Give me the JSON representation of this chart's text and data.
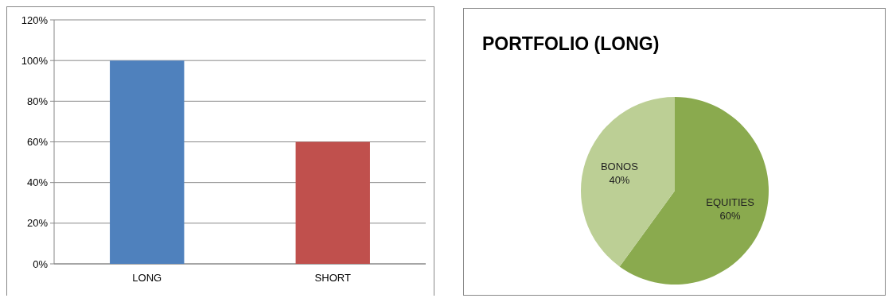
{
  "chart_data": [
    {
      "type": "bar",
      "categories": [
        "LONG",
        "SHORT"
      ],
      "colors": [
        "#4f81bd",
        "#c0504d"
      ],
      "values": [
        100,
        60
      ],
      "ylim": [
        0,
        120
      ],
      "yticks": [
        {
          "value": 0,
          "label": "0%"
        },
        {
          "value": 20,
          "label": "20%"
        },
        {
          "value": 40,
          "label": "40%"
        },
        {
          "value": 60,
          "label": "60%"
        },
        {
          "value": 80,
          "label": "80%"
        },
        {
          "value": 100,
          "label": "100%"
        },
        {
          "value": 120,
          "label": "120%"
        }
      ],
      "grid": "y"
    },
    {
      "type": "pie",
      "title": "PORTFOLIO (LONG)",
      "categories": [
        "EQUITIES",
        "BONOS"
      ],
      "values": [
        60,
        40
      ],
      "colors": [
        "#8aaa4e",
        "#bccf95"
      ],
      "value_labels": [
        "60%",
        "40%"
      ]
    }
  ]
}
